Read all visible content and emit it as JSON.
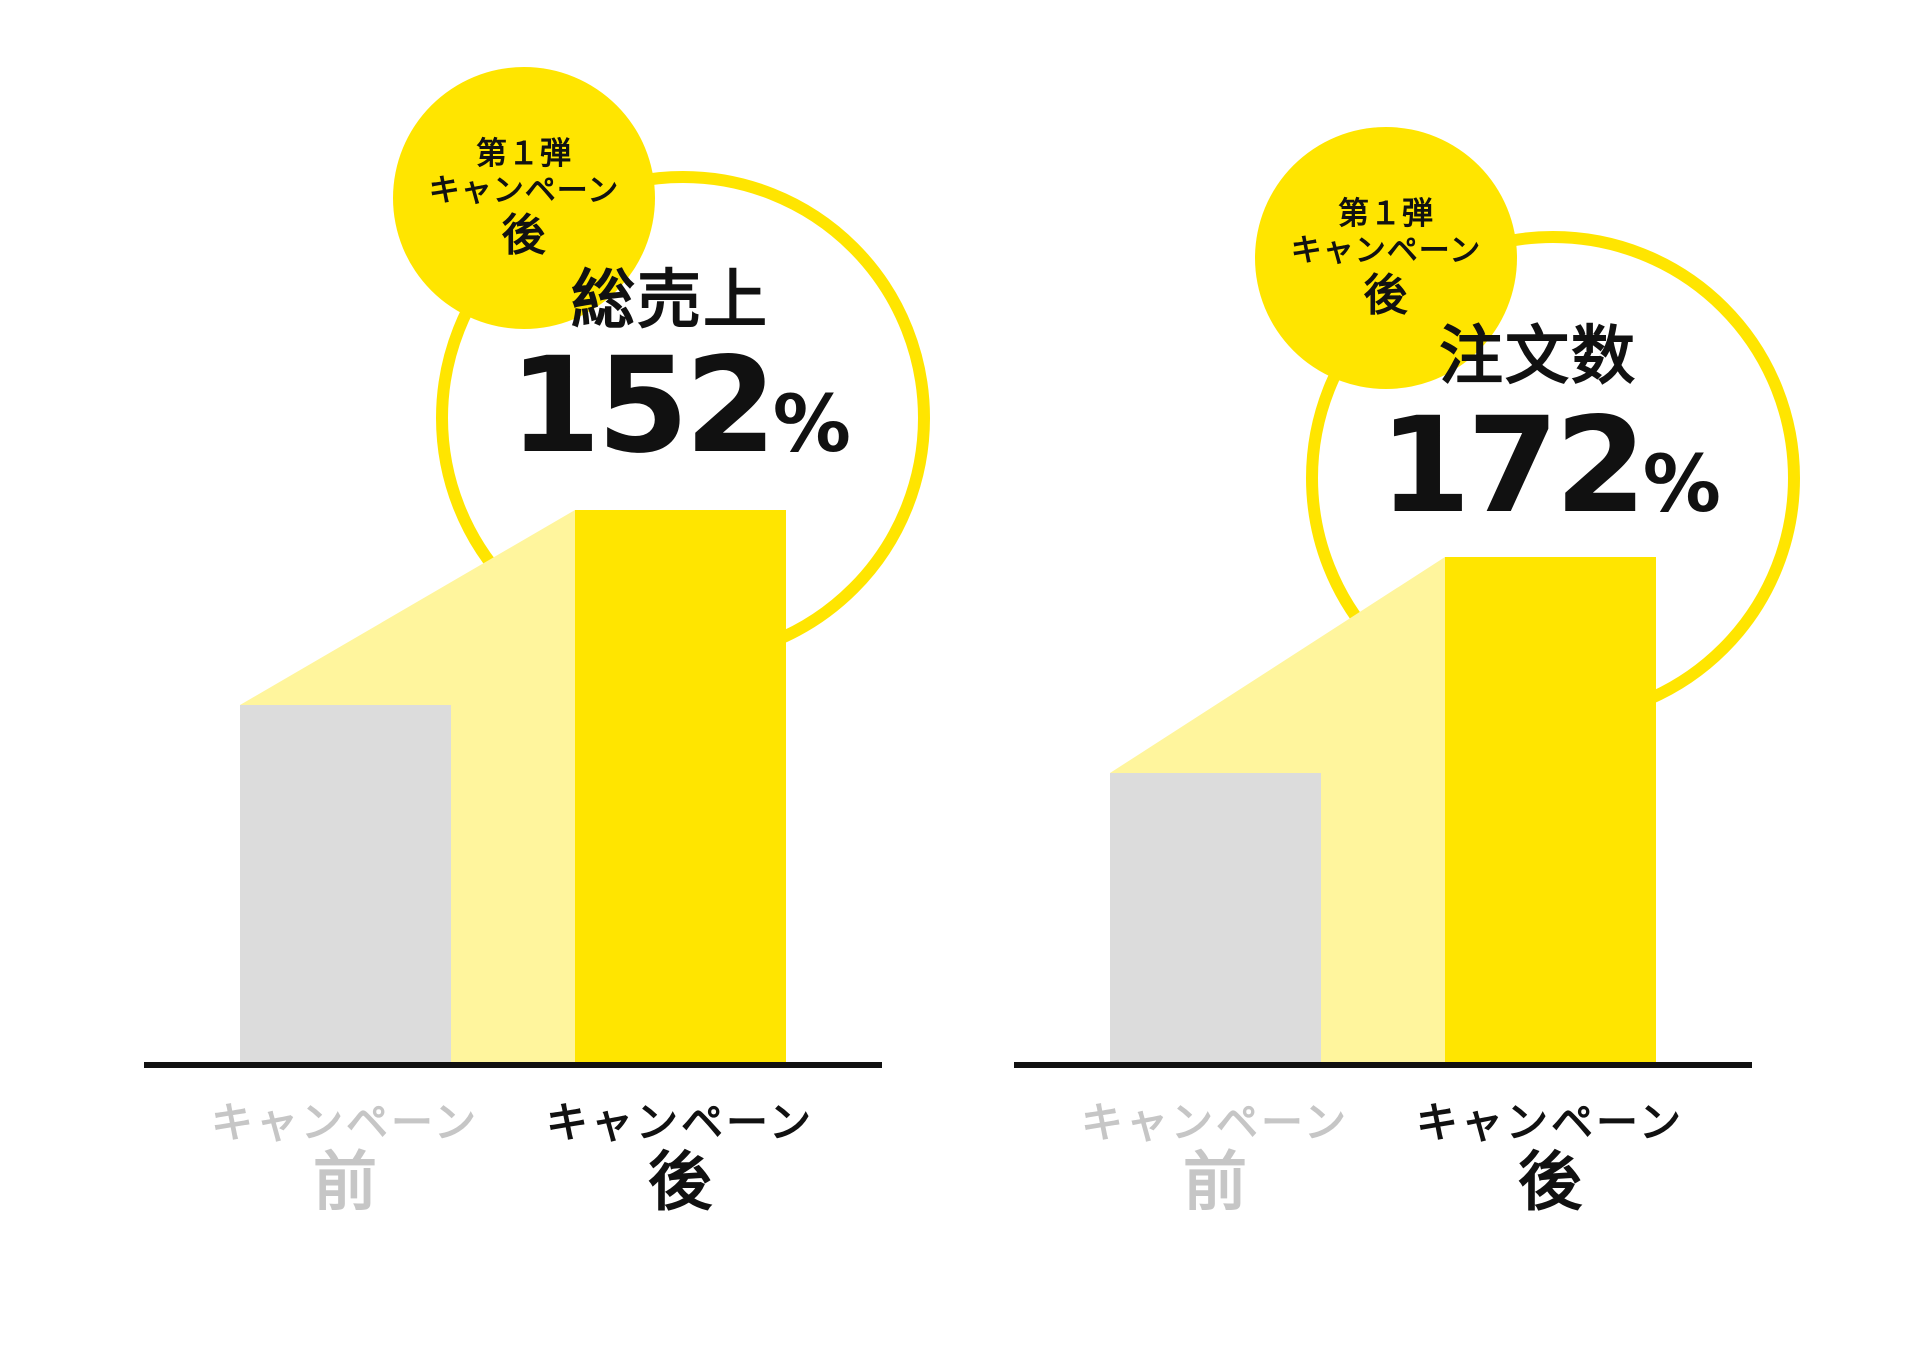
{
  "colors": {
    "before_bar": "#dcdcdc",
    "after_bar": "#ffe500",
    "projection": "#fff59d",
    "circle_stroke": "#ffe500",
    "badge_fill": "#ffe500",
    "axis": "#111111",
    "muted_text": "#c6c6c6",
    "text": "#111111"
  },
  "chart_data": [
    {
      "type": "bar",
      "categories": [
        "キャンペーン前",
        "キャンペーン後"
      ],
      "values": [
        100,
        152
      ],
      "ratio_label": "総売上",
      "ratio_value": "152",
      "ratio_unit": "%",
      "badge": {
        "line1": "第１弾",
        "line2": "キャンペーン",
        "line3": "後"
      },
      "axis_labels": [
        {
          "top": "キャンペーン",
          "bottom": "前"
        },
        {
          "top": "キャンペーン",
          "bottom": "後"
        }
      ]
    },
    {
      "type": "bar",
      "categories": [
        "キャンペーン前",
        "キャンペーン後"
      ],
      "values": [
        100,
        172
      ],
      "ratio_label": "注文数",
      "ratio_value": "172",
      "ratio_unit": "%",
      "badge": {
        "line1": "第１弾",
        "line2": "キャンペーン",
        "line3": "後"
      },
      "axis_labels": [
        {
          "top": "キャンペーン",
          "bottom": "前"
        },
        {
          "top": "キャンペーン",
          "bottom": "後"
        }
      ]
    }
  ]
}
